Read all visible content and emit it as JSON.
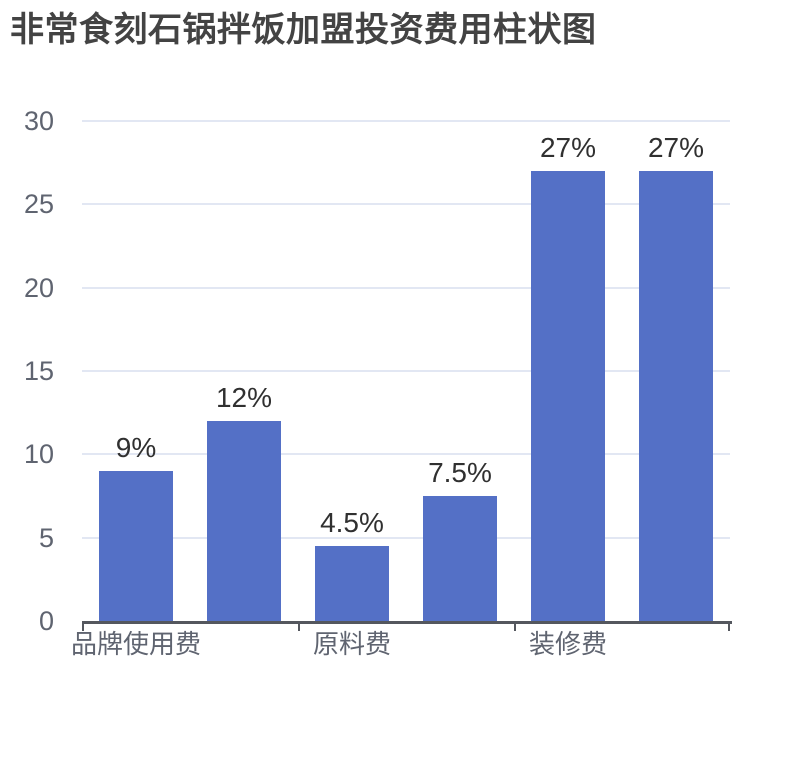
{
  "title": "非常食刻石锅拌饭加盟投资费用柱状图",
  "chart_data": {
    "type": "bar",
    "categories": [
      "品牌使用费",
      "原料费",
      "装修费"
    ],
    "values": [
      9,
      12,
      4.5,
      7.5,
      27,
      27
    ],
    "bar_labels": [
      "9%",
      "12%",
      "4.5%",
      "7.5%",
      "27%",
      "27%"
    ],
    "bars_per_category": 2,
    "y_ticks": [
      0,
      5,
      10,
      15,
      20,
      25,
      30
    ],
    "ylim": [
      0,
      30
    ],
    "xlabel": "",
    "ylabel": "",
    "grid": "horizontal gridlines on",
    "legend": "none",
    "colors": {
      "bar": "#5470c6",
      "gridline": "#e2e7f3",
      "axis_line": "#54575e",
      "axis_label": "#5f6470",
      "value_label": "#303030",
      "title": "#434343"
    }
  }
}
